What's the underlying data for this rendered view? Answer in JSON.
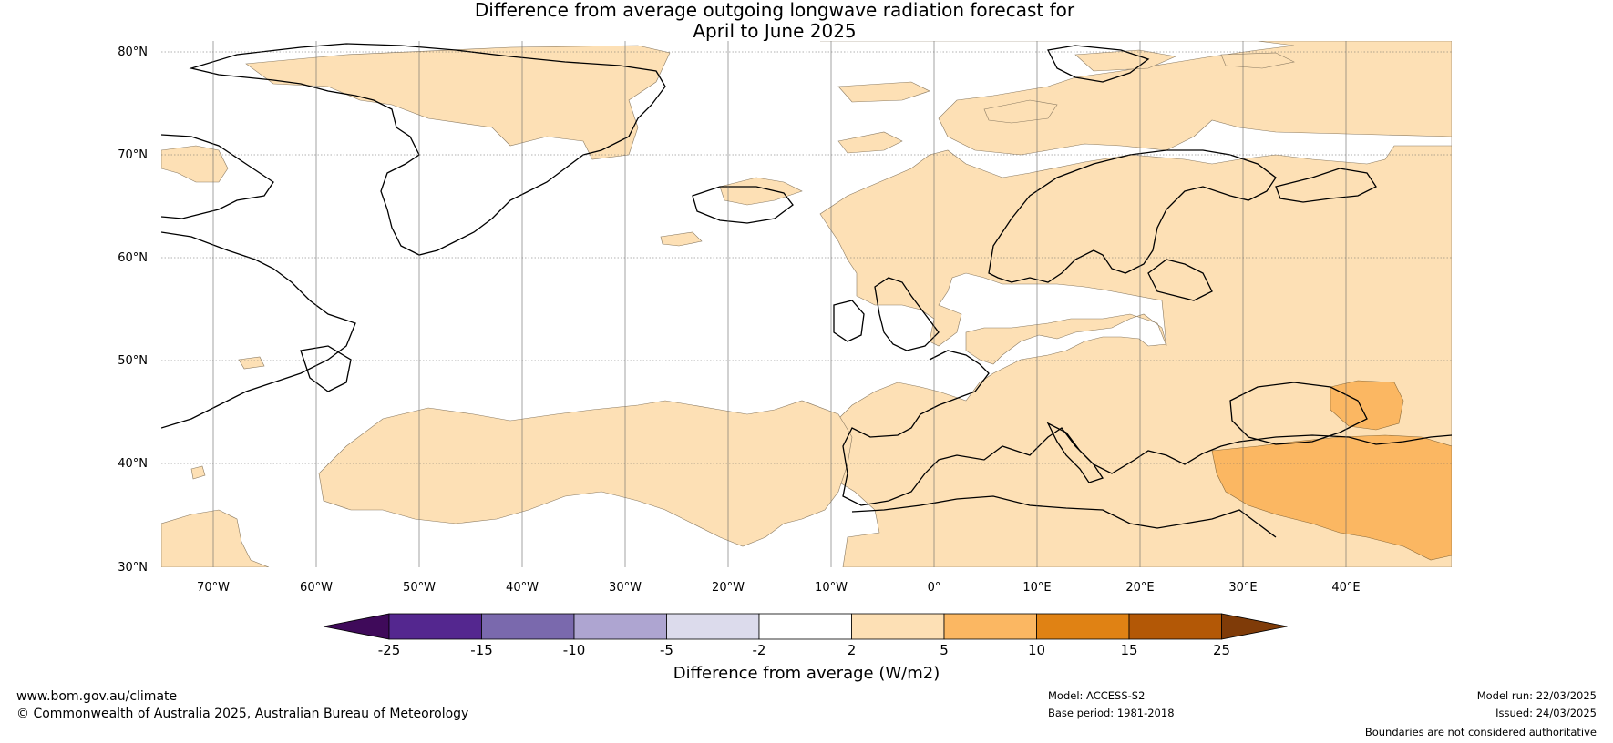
{
  "title_line1": "Difference from average outgoing longwave radiation forecast for",
  "title_line2": "April to June 2025",
  "lat_labels": [
    "80°N",
    "70°N",
    "60°N",
    "50°N",
    "40°N",
    "30°N"
  ],
  "lon_labels": [
    "70°W",
    "60°W",
    "50°W",
    "40°W",
    "30°W",
    "20°W",
    "10°W",
    "0°",
    "10°E",
    "20°E",
    "30°E",
    "40°E"
  ],
  "colorbar": {
    "ticks": [
      "-25",
      "-15",
      "-10",
      "-5",
      "-2",
      "2",
      "5",
      "10",
      "15",
      "25"
    ],
    "colors": [
      "#3f0a5a",
      "#54278f",
      "#7a69ad",
      "#aea5d1",
      "#dcdbec",
      "#ffffff",
      "#fde0b5",
      "#fbb762",
      "#e08214",
      "#b35806",
      "#7f3b08"
    ],
    "label": "Difference from average (W/m2)"
  },
  "footer": {
    "url": "www.bom.gov.au/climate",
    "copyright": "© Commonwealth of Australia 2025, Australian Bureau of Meteorology",
    "model": "Model: ACCESS-S2",
    "base_period": "Base period: 1981-2018",
    "model_run": "Model run: 22/03/2025",
    "issued": "Issued: 24/03/2025",
    "disclaimer": "Boundaries are not considered authoritative"
  }
}
